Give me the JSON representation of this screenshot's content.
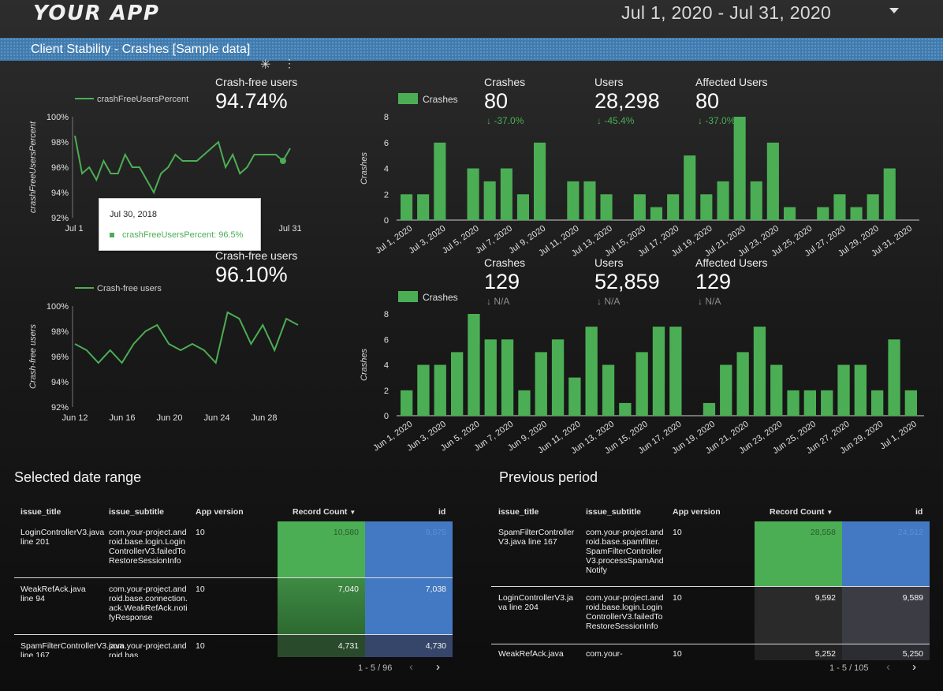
{
  "header": {
    "app_title": "YOUR APP",
    "date_range": "Jul 1, 2020 - Jul 31, 2020"
  },
  "banner": {
    "title": "Client Stability - Crashes [Sample data]"
  },
  "scorecards": {
    "top_crash_free": {
      "label": "Crash-free users",
      "value": "94.74%"
    },
    "bottom_crash_free": {
      "label": "Crash-free users",
      "value": "96.10%"
    },
    "top": [
      {
        "label": "Crashes",
        "value": "80",
        "delta": "-37.0%"
      },
      {
        "label": "Users",
        "value": "28,298",
        "delta": "-45.4%"
      },
      {
        "label": "Affected Users",
        "value": "80",
        "delta": "-37.0%"
      }
    ],
    "bottom": [
      {
        "label": "Crashes",
        "value": "129",
        "delta": "N/A"
      },
      {
        "label": "Users",
        "value": "52,859",
        "delta": "N/A"
      },
      {
        "label": "Affected Users",
        "value": "129",
        "delta": "N/A"
      }
    ]
  },
  "tooltip": {
    "date": "Jul 30, 2018",
    "line": "crashFreeUsersPercent: 96.5%"
  },
  "colors": {
    "green": "#4cae54",
    "blue": "#4379c2",
    "gray": "#8f8f8f"
  },
  "chart_data": [
    {
      "type": "line",
      "legend": "crashFreeUsersPercent",
      "ylabel": "crashFreeUsersPercent",
      "ylim": [
        92,
        100
      ],
      "yticks": [
        "92%",
        "94%",
        "96%",
        "98%",
        "100%"
      ],
      "xticks": [
        "Jul 1",
        "Jul 31"
      ],
      "x": [
        1,
        2,
        3,
        4,
        5,
        6,
        7,
        8,
        9,
        10,
        11,
        12,
        13,
        14,
        15,
        16,
        17,
        18,
        19,
        20,
        21,
        22,
        23,
        24,
        25,
        26,
        27,
        28,
        29,
        30,
        31
      ],
      "values": [
        98.5,
        95.5,
        96,
        95,
        96.5,
        95.5,
        95.5,
        97,
        96,
        96,
        95,
        94,
        95.5,
        96,
        97,
        96.5,
        96.5,
        96.5,
        97,
        97.5,
        98,
        96,
        97,
        95.5,
        96,
        97,
        97,
        97,
        97,
        96.5,
        97.5
      ],
      "highlight_index": 29
    },
    {
      "type": "line",
      "legend": "Crash-free users",
      "ylabel": "Crash-free users",
      "ylim": [
        92,
        100
      ],
      "yticks": [
        "92%",
        "94%",
        "96%",
        "98%",
        "100%"
      ],
      "xticks": [
        "Jun 12",
        "Jun 16",
        "Jun 20",
        "Jun 24",
        "Jun 28"
      ],
      "x": [
        12,
        13,
        14,
        15,
        16,
        17,
        18,
        19,
        20,
        21,
        22,
        23,
        24,
        25,
        26,
        27,
        28,
        29,
        30,
        31
      ],
      "values": [
        97,
        96.5,
        95.5,
        96.5,
        95.5,
        97,
        98,
        98.5,
        97,
        96.5,
        97,
        96.5,
        95.5,
        99.5,
        99,
        97,
        98.5,
        96.5,
        99,
        98.5
      ]
    },
    {
      "type": "bar",
      "legend": "Crashes",
      "ylabel": "Crashes",
      "ylim": [
        0,
        8
      ],
      "yticks": [
        "0",
        "2",
        "4",
        "6",
        "8"
      ],
      "categories": [
        "Jul 1, 2020",
        "Jul 2, 2020",
        "Jul 3, 2020",
        "Jul 4, 2020",
        "Jul 5, 2020",
        "Jul 6, 2020",
        "Jul 7, 2020",
        "Jul 8, 2020",
        "Jul 9, 2020",
        "Jul 10, 2020",
        "Jul 11, 2020",
        "Jul 12, 2020",
        "Jul 13, 2020",
        "Jul 14, 2020",
        "Jul 15, 2020",
        "Jul 16, 2020",
        "Jul 17, 2020",
        "Jul 18, 2020",
        "Jul 19, 2020",
        "Jul 20, 2020",
        "Jul 21, 2020",
        "Jul 22, 2020",
        "Jul 23, 2020",
        "Jul 24, 2020",
        "Jul 25, 2020",
        "Jul 26, 2020",
        "Jul 27, 2020",
        "Jul 28, 2020",
        "Jul 29, 2020",
        "Jul 30, 2020",
        "Jul 31, 2020"
      ],
      "xtick_labels": [
        "Jul 1, 2020",
        "Jul 3, 2020",
        "Jul 5, 2020",
        "Jul 7, 2020",
        "Jul 9, 2020",
        "Jul 11, 2020",
        "Jul 13, 2020",
        "Jul 15, 2020",
        "Jul 17, 2020",
        "Jul 19, 2020",
        "Jul 21, 2020",
        "Jul 23, 2020",
        "Jul 25, 2020",
        "Jul 27, 2020",
        "Jul 29, 2020",
        "Jul 31, 2020"
      ],
      "values": [
        2,
        2,
        6,
        0,
        4,
        3,
        4,
        2,
        6,
        0,
        3,
        3,
        2,
        0,
        2,
        1,
        2,
        5,
        2,
        3,
        8,
        3,
        6,
        1,
        0,
        1,
        2,
        1,
        2,
        4,
        0
      ]
    },
    {
      "type": "bar",
      "legend": "Crashes",
      "ylabel": "Crashes",
      "ylim": [
        0,
        8
      ],
      "yticks": [
        "0",
        "2",
        "4",
        "6",
        "8"
      ],
      "categories": [
        "Jun 1, 2020",
        "Jun 2, 2020",
        "Jun 3, 2020",
        "Jun 4, 2020",
        "Jun 5, 2020",
        "Jun 6, 2020",
        "Jun 7, 2020",
        "Jun 8, 2020",
        "Jun 9, 2020",
        "Jun 10, 2020",
        "Jun 11, 2020",
        "Jun 12, 2020",
        "Jun 13, 2020",
        "Jun 14, 2020",
        "Jun 15, 2020",
        "Jun 16, 2020",
        "Jun 17, 2020",
        "Jun 18, 2020",
        "Jun 19, 2020",
        "Jun 20, 2020",
        "Jun 21, 2020",
        "Jun 22, 2020",
        "Jun 23, 2020",
        "Jun 24, 2020",
        "Jun 25, 2020",
        "Jun 26, 2020",
        "Jun 27, 2020",
        "Jun 28, 2020",
        "Jun 29, 2020",
        "Jun 30, 2020",
        "Jul 1, 2020"
      ],
      "xtick_labels": [
        "Jun 1, 2020",
        "Jun 3, 2020",
        "Jun 5, 2020",
        "Jun 7, 2020",
        "Jun 9, 2020",
        "Jun 11, 2020",
        "Jun 13, 2020",
        "Jun 15, 2020",
        "Jun 17, 2020",
        "Jun 19, 2020",
        "Jun 21, 2020",
        "Jun 23, 2020",
        "Jun 25, 2020",
        "Jun 27, 2020",
        "Jun 29, 2020",
        "Jul 1, 2020"
      ],
      "values": [
        2,
        4,
        4,
        5,
        8,
        6,
        6,
        2,
        5,
        6,
        3,
        7,
        4,
        1,
        5,
        7,
        7,
        0,
        1,
        4,
        5,
        7,
        4,
        2,
        2,
        2,
        4,
        4,
        2,
        6,
        2
      ]
    }
  ],
  "tables": {
    "headers": [
      "issue_title",
      "issue_subtitle",
      "App version",
      "Record Count",
      "id"
    ],
    "selected": {
      "title": "Selected date range",
      "rows": [
        {
          "title": "LoginControllerV3.java line 201",
          "subtitle": "com.your-project.android.base.login.LoginControllerV3.failedToRestoreSessionInfo",
          "version": "10",
          "count": "10,580",
          "id": "9,575"
        },
        {
          "title": "WeakRefAck.java line 94",
          "subtitle": "com.your-project.android.base.connection.ack.WeakRefAck.notifyResponse",
          "version": "10",
          "count": "7,040",
          "id": "7,038"
        },
        {
          "title": "SpamFilterControllerV3.java line 167",
          "subtitle": "com.your-project.android.bas",
          "version": "10",
          "count": "4,731",
          "id": "4,730"
        }
      ],
      "pager": "1 - 5 / 96"
    },
    "previous": {
      "title": "Previous period",
      "rows": [
        {
          "title": "SpamFilterControllerV3.java line 167",
          "subtitle": "com.your-project.android.base.spamfilter.SpamFilterControllerV3.processSpamAndNotify",
          "version": "10",
          "count": "28,558",
          "id": "24,512"
        },
        {
          "title": "LoginControllerV3.java line 204",
          "subtitle": "com.your-project.android.base.login.LoginControllerV3.failedToRestoreSessionInfo",
          "version": "10",
          "count": "9,592",
          "id": "9,589"
        },
        {
          "title": "WeakRefAck.java",
          "subtitle": "com.your-",
          "version": "10",
          "count": "5,252",
          "id": "5,250"
        }
      ],
      "pager": "1 - 5 / 105"
    }
  }
}
